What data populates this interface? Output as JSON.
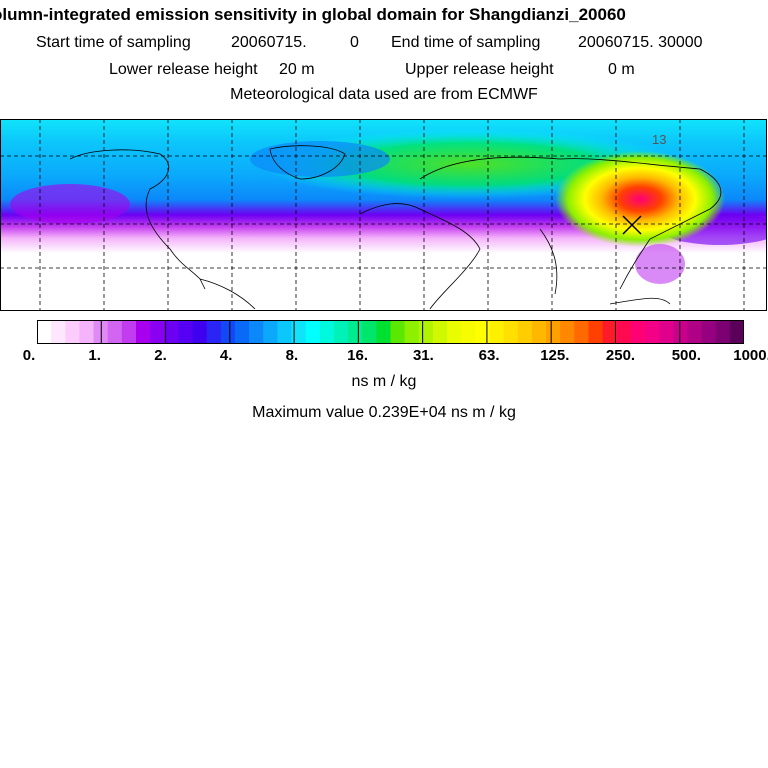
{
  "title": "olumn-integrated emission sensitivity in global domain for Shangdianzi_20060",
  "sampling_start_label": "Start time of sampling",
  "sampling_start_value": "20060715.",
  "sampling_start_hour": "0",
  "sampling_end_label": "End time of sampling",
  "sampling_end_value": "20060715. 30000",
  "lower_release_label": "Lower release height",
  "lower_release_value": "20 m",
  "upper_release_label": "Upper release height",
  "upper_release_value": "0 m",
  "met_data": "Meteorological data used are from ECMWF",
  "map_label": "13",
  "colorbar": {
    "tick_labels": [
      "0.",
      "1.",
      "2.",
      "4.",
      "8.",
      "16.",
      "31.",
      "63.",
      "125.",
      "250.",
      "500.",
      "1000."
    ],
    "colors": [
      "#ffffff",
      "#ffe6ff",
      "#fccdfc",
      "#f4b3fa",
      "#e08af5",
      "#d266f2",
      "#c23cf0",
      "#a800ee",
      "#8a00f0",
      "#6d00f2",
      "#5500f5",
      "#4000f0",
      "#2a24f5",
      "#1448f7",
      "#0a6af8",
      "#0c88fa",
      "#0ba8fb",
      "#0cc7fb",
      "#10e4fb",
      "#00ffff",
      "#00f8dc",
      "#00f2b8",
      "#00ec90",
      "#00e66a",
      "#00e030",
      "#5be800",
      "#8cf000",
      "#b2f400",
      "#d0f800",
      "#eafc00",
      "#f8fc00",
      "#ffff00",
      "#fff000",
      "#ffe000",
      "#ffcd00",
      "#ffb800",
      "#ffa000",
      "#ff8800",
      "#ff6a00",
      "#ff4000",
      "#ff1a2a",
      "#ff0a50",
      "#ff0075",
      "#f40086",
      "#e0008c",
      "#c8008a",
      "#b00085",
      "#960080",
      "#7c0072",
      "#5a005a"
    ],
    "unit": "ns m / kg"
  },
  "maximum_label": "Maximum value",
  "maximum_value": "0.239E+04 ns m / kg"
}
